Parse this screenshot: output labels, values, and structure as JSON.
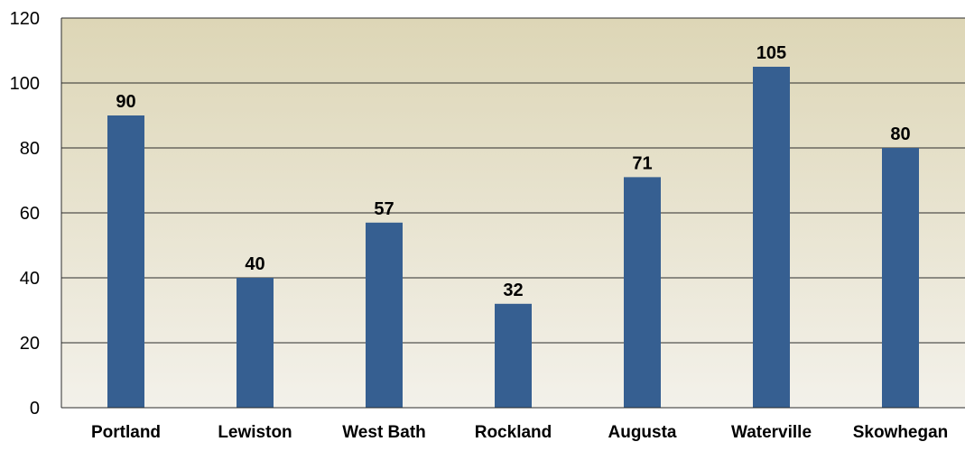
{
  "chart_data": {
    "type": "bar",
    "title": "",
    "xlabel": "",
    "ylabel": "",
    "categories": [
      "Portland",
      "Lewiston",
      "West Bath",
      "Rockland",
      "Augusta",
      "Waterville",
      "Skowhegan"
    ],
    "values": [
      90,
      40,
      57,
      32,
      71,
      105,
      80
    ],
    "ylim": [
      0,
      120
    ],
    "yticks": [
      0,
      20,
      40,
      60,
      80,
      100,
      120
    ],
    "grid": true,
    "data_labels": true,
    "colors": {
      "bar": "#365f91",
      "plot_bg_top": "#ddd6b6",
      "plot_bg_bottom": "#f3f1ea",
      "gridline": "#2b2b2b"
    }
  }
}
